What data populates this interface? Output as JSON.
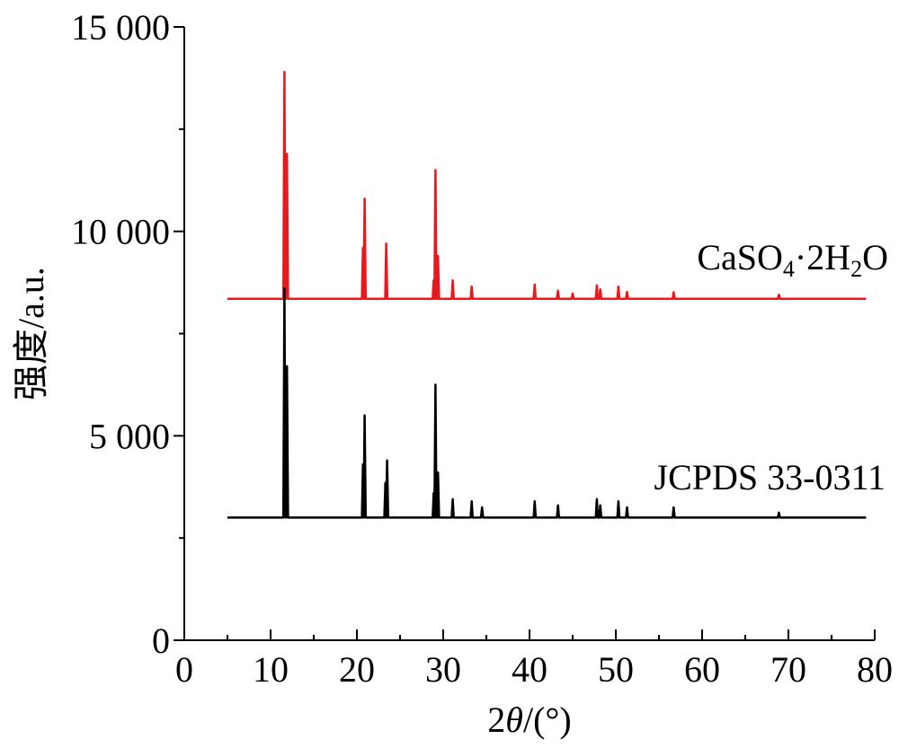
{
  "chart_data": {
    "type": "line",
    "xlabel": "2θ/(°)",
    "xlabel_parts": {
      "prefix": "2",
      "italic": "θ",
      "suffix": "/(°)"
    },
    "ylabel": "强度/a.u.",
    "xlim": [
      0,
      80
    ],
    "ylim": [
      0,
      15000
    ],
    "x_ticks": [
      0,
      10,
      20,
      30,
      40,
      50,
      60,
      70,
      80
    ],
    "x_tick_labels": [
      "0",
      "10",
      "20",
      "30",
      "40",
      "50",
      "60",
      "70",
      "80"
    ],
    "y_ticks": [
      0,
      5000,
      10000,
      15000
    ],
    "y_tick_labels": [
      "0",
      "5 000",
      "10 000",
      "15 000"
    ],
    "grid": false,
    "series": [
      {
        "name": "CaSO₄·2H₂O",
        "label_parts": [
          "CaSO",
          "4",
          "·2H",
          "2",
          "O"
        ],
        "color": "#e8191c",
        "baseline": 8350,
        "x_start": 5,
        "x_end": 79,
        "peaks": [
          {
            "x": 11.6,
            "y": 13900
          },
          {
            "x": 11.9,
            "y": 11900
          },
          {
            "x": 20.7,
            "y": 9600
          },
          {
            "x": 20.9,
            "y": 10800
          },
          {
            "x": 23.4,
            "y": 9700
          },
          {
            "x": 28.9,
            "y": 8800
          },
          {
            "x": 29.1,
            "y": 11500
          },
          {
            "x": 29.4,
            "y": 9400
          },
          {
            "x": 31.1,
            "y": 8800
          },
          {
            "x": 33.3,
            "y": 8650
          },
          {
            "x": 40.6,
            "y": 8700
          },
          {
            "x": 43.3,
            "y": 8550
          },
          {
            "x": 45.0,
            "y": 8480
          },
          {
            "x": 47.8,
            "y": 8680
          },
          {
            "x": 48.2,
            "y": 8580
          },
          {
            "x": 50.3,
            "y": 8650
          },
          {
            "x": 51.3,
            "y": 8520
          },
          {
            "x": 56.7,
            "y": 8510
          },
          {
            "x": 68.9,
            "y": 8450
          }
        ]
      },
      {
        "name": "JCPDS 33-0311",
        "color": "#000000",
        "baseline": 3000,
        "x_start": 5,
        "x_end": 79,
        "peaks": [
          {
            "x": 11.6,
            "y": 8600
          },
          {
            "x": 11.9,
            "y": 6700
          },
          {
            "x": 20.7,
            "y": 4300
          },
          {
            "x": 20.9,
            "y": 5500
          },
          {
            "x": 23.3,
            "y": 3850
          },
          {
            "x": 23.5,
            "y": 4400
          },
          {
            "x": 28.9,
            "y": 3600
          },
          {
            "x": 29.1,
            "y": 6250
          },
          {
            "x": 29.4,
            "y": 4100
          },
          {
            "x": 31.1,
            "y": 3450
          },
          {
            "x": 33.3,
            "y": 3400
          },
          {
            "x": 34.5,
            "y": 3250
          },
          {
            "x": 40.6,
            "y": 3400
          },
          {
            "x": 43.3,
            "y": 3300
          },
          {
            "x": 47.8,
            "y": 3450
          },
          {
            "x": 48.2,
            "y": 3300
          },
          {
            "x": 50.3,
            "y": 3400
          },
          {
            "x": 51.3,
            "y": 3250
          },
          {
            "x": 56.7,
            "y": 3250
          },
          {
            "x": 68.9,
            "y": 3120
          }
        ]
      }
    ]
  }
}
